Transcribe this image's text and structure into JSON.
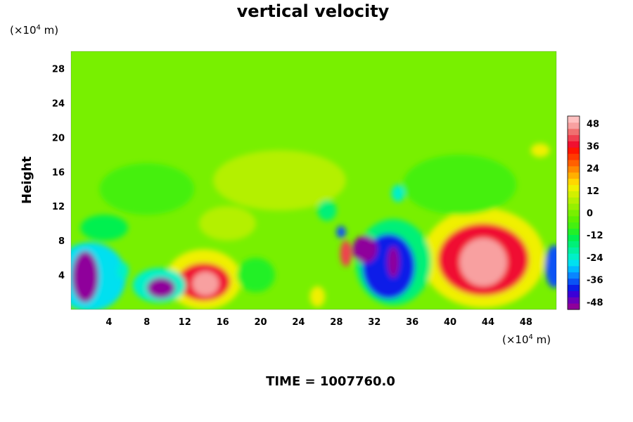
{
  "chart_data": {
    "type": "heatmap",
    "title": "vertical velocity",
    "ylabel": "Height",
    "x_unit": [
      "(×10",
      "4",
      " m)"
    ],
    "y_unit": [
      "(×10",
      "4",
      " m)"
    ],
    "x_ticks": [
      4,
      8,
      12,
      16,
      20,
      24,
      28,
      32,
      36,
      40,
      44,
      48
    ],
    "y_ticks": [
      4,
      8,
      12,
      16,
      20,
      24,
      28
    ],
    "xlim": [
      0,
      51.2
    ],
    "ylim": [
      0,
      30
    ],
    "colorbar": {
      "ticks": [
        48,
        36,
        24,
        12,
        0,
        -12,
        -24,
        -36,
        -48
      ],
      "range": [
        -52,
        52
      ],
      "colors": [
        "#8f009b",
        "#6a00ba",
        "#3a00d8",
        "#0a1de8",
        "#0a52f5",
        "#0a85ff",
        "#00b9ff",
        "#00e0f0",
        "#00f0c8",
        "#00f0a0",
        "#00f078",
        "#00f050",
        "#22f028",
        "#44f010",
        "#5cf000",
        "#78f000",
        "#96f000",
        "#b4f000",
        "#d2f000",
        "#f0f000",
        "#ffd700",
        "#ffb000",
        "#ff8800",
        "#ff6000",
        "#ff3a00",
        "#ff1500",
        "#f01030",
        "#f04050",
        "#f07070",
        "#f8a0a0",
        "#ffc0c0"
      ]
    },
    "features": [
      {
        "x": 1.5,
        "y": 3.8,
        "rx": 1.4,
        "ry": 3.0,
        "w": -52
      },
      {
        "x": 2.0,
        "y": 3.8,
        "rx": 3.8,
        "ry": 4.0,
        "w": -28
      },
      {
        "x": 9.5,
        "y": 2.5,
        "rx": 1.5,
        "ry": 1.2,
        "w": -50
      },
      {
        "x": 9.3,
        "y": 2.8,
        "rx": 2.8,
        "ry": 2.0,
        "w": -22
      },
      {
        "x": 5.5,
        "y": 4.5,
        "rx": 0.6,
        "ry": 1.0,
        "w": -22
      },
      {
        "x": 14.0,
        "y": 3.2,
        "rx": 2.8,
        "ry": 2.2,
        "w": 38
      },
      {
        "x": 14.2,
        "y": 3.0,
        "rx": 1.4,
        "ry": 1.4,
        "w": 46
      },
      {
        "x": 14.0,
        "y": 3.5,
        "rx": 4.0,
        "ry": 3.5,
        "w": 12
      },
      {
        "x": 19.5,
        "y": 4.0,
        "rx": 2.0,
        "ry": 2.0,
        "w": -10
      },
      {
        "x": 26.0,
        "y": 1.5,
        "rx": 0.8,
        "ry": 1.2,
        "w": 14
      },
      {
        "x": 29.0,
        "y": 6.5,
        "rx": 0.6,
        "ry": 1.5,
        "w": 40
      },
      {
        "x": 28.5,
        "y": 9.0,
        "rx": 0.5,
        "ry": 0.7,
        "w": -38
      },
      {
        "x": 31.0,
        "y": 7.0,
        "rx": 1.3,
        "ry": 1.6,
        "w": -50
      },
      {
        "x": 33.5,
        "y": 5.0,
        "rx": 2.8,
        "ry": 3.8,
        "w": -40
      },
      {
        "x": 34.0,
        "y": 5.5,
        "rx": 0.6,
        "ry": 1.8,
        "w": -52
      },
      {
        "x": 34.0,
        "y": 5.5,
        "rx": 4.0,
        "ry": 5.0,
        "w": -16
      },
      {
        "x": 34.5,
        "y": 13.5,
        "rx": 0.7,
        "ry": 1.0,
        "w": -24
      },
      {
        "x": 27.0,
        "y": 11.5,
        "rx": 1.0,
        "ry": 1.2,
        "w": -18
      },
      {
        "x": 43.5,
        "y": 5.8,
        "rx": 4.8,
        "ry": 4.2,
        "w": 36
      },
      {
        "x": 43.5,
        "y": 5.5,
        "rx": 2.5,
        "ry": 2.8,
        "w": 48
      },
      {
        "x": 43.5,
        "y": 6.0,
        "rx": 6.5,
        "ry": 5.8,
        "w": 14
      },
      {
        "x": 51.0,
        "y": 5.0,
        "rx": 1.0,
        "ry": 2.5,
        "w": -36
      },
      {
        "x": 8.0,
        "y": 14.0,
        "rx": 5.0,
        "ry": 3.0,
        "w": -8
      },
      {
        "x": 22.0,
        "y": 15.0,
        "rx": 7.0,
        "ry": 3.5,
        "w": 7
      },
      {
        "x": 41.0,
        "y": 14.5,
        "rx": 6.0,
        "ry": 3.5,
        "w": -7
      },
      {
        "x": 49.5,
        "y": 18.5,
        "rx": 1.0,
        "ry": 0.8,
        "w": 14
      },
      {
        "x": 3.5,
        "y": 9.5,
        "rx": 2.5,
        "ry": 1.5,
        "w": -12
      },
      {
        "x": 16.5,
        "y": 10.0,
        "rx": 3.0,
        "ry": 2.0,
        "w": 6
      }
    ]
  },
  "footer": {
    "time_label": "TIME = 1007760.0"
  }
}
